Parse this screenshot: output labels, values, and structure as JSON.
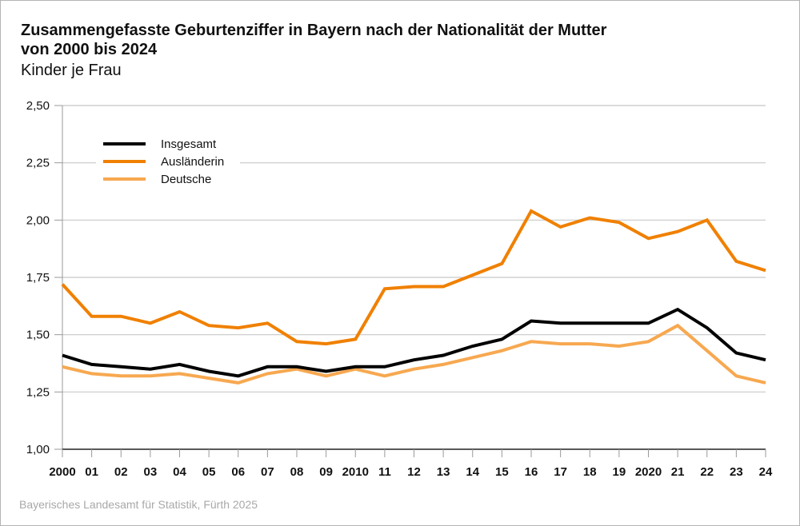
{
  "chart_data": {
    "type": "line",
    "title_line1": "Zusammengefasste Geburtenziffer in Bayern nach der Nationalität der Mutter",
    "title_line2": "von 2000 bis 2024",
    "subtitle": "Kinder je Frau",
    "xlabel": "",
    "ylabel": "Kinder je Frau",
    "x": [
      2000,
      2001,
      2002,
      2003,
      2004,
      2005,
      2006,
      2007,
      2008,
      2009,
      2010,
      2011,
      2012,
      2013,
      2014,
      2015,
      2016,
      2017,
      2018,
      2019,
      2020,
      2021,
      2022,
      2023,
      2024
    ],
    "x_tick_labels": [
      "2000",
      "01",
      "02",
      "03",
      "04",
      "05",
      "06",
      "07",
      "08",
      "09",
      "2010",
      "11",
      "12",
      "13",
      "14",
      "15",
      "16",
      "17",
      "18",
      "19",
      "2020",
      "21",
      "22",
      "23",
      "24"
    ],
    "ylim": [
      1.0,
      2.5
    ],
    "y_ticks": [
      1.0,
      1.25,
      1.5,
      1.75,
      2.0,
      2.25,
      2.5
    ],
    "y_tick_labels": [
      "1,00",
      "1,25",
      "1,50",
      "1,75",
      "2,00",
      "2,25",
      "2,50"
    ],
    "grid": true,
    "legend_placement": "top-left",
    "series": [
      {
        "name": "Insgesamt",
        "color": "#000000",
        "values": [
          1.41,
          1.37,
          1.36,
          1.35,
          1.37,
          1.34,
          1.32,
          1.36,
          1.36,
          1.34,
          1.36,
          1.36,
          1.39,
          1.41,
          1.45,
          1.48,
          1.56,
          1.55,
          1.55,
          1.55,
          1.55,
          1.61,
          1.53,
          1.42,
          1.39
        ]
      },
      {
        "name": "Ausländerin",
        "color": "#f08000",
        "values": [
          1.72,
          1.58,
          1.58,
          1.55,
          1.6,
          1.54,
          1.53,
          1.55,
          1.47,
          1.46,
          1.48,
          1.7,
          1.71,
          1.71,
          1.76,
          1.81,
          2.04,
          1.97,
          2.01,
          1.99,
          1.92,
          1.95,
          2.0,
          1.82,
          1.78
        ]
      },
      {
        "name": "Deutsche",
        "color": "#f7a850",
        "values": [
          1.36,
          1.33,
          1.32,
          1.32,
          1.33,
          1.31,
          1.29,
          1.33,
          1.35,
          1.32,
          1.35,
          1.32,
          1.35,
          1.37,
          1.4,
          1.43,
          1.47,
          1.46,
          1.46,
          1.45,
          1.47,
          1.54,
          1.43,
          1.32,
          1.29
        ]
      }
    ],
    "source": "Bayerisches Landesamt für Statistik, Fürth 2025"
  }
}
